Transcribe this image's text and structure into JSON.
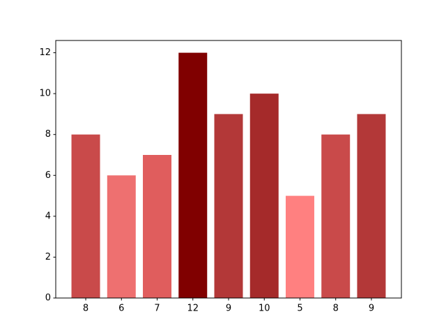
{
  "chart_data": {
    "type": "bar",
    "categories": [
      "8",
      "6",
      "7",
      "12",
      "9",
      "10",
      "5",
      "8",
      "9"
    ],
    "values": [
      8,
      6,
      7,
      12,
      9,
      10,
      5,
      8,
      9
    ],
    "colors": [
      "#c94a4a",
      "#ee7070",
      "#e05d5d",
      "#800000",
      "#b33838",
      "#a52a2a",
      "#ff8080",
      "#c94a4a",
      "#b33838"
    ],
    "ylim": [
      0,
      12.6
    ],
    "yticks": [
      0,
      2,
      4,
      6,
      8,
      10,
      12
    ],
    "grid": false
  }
}
